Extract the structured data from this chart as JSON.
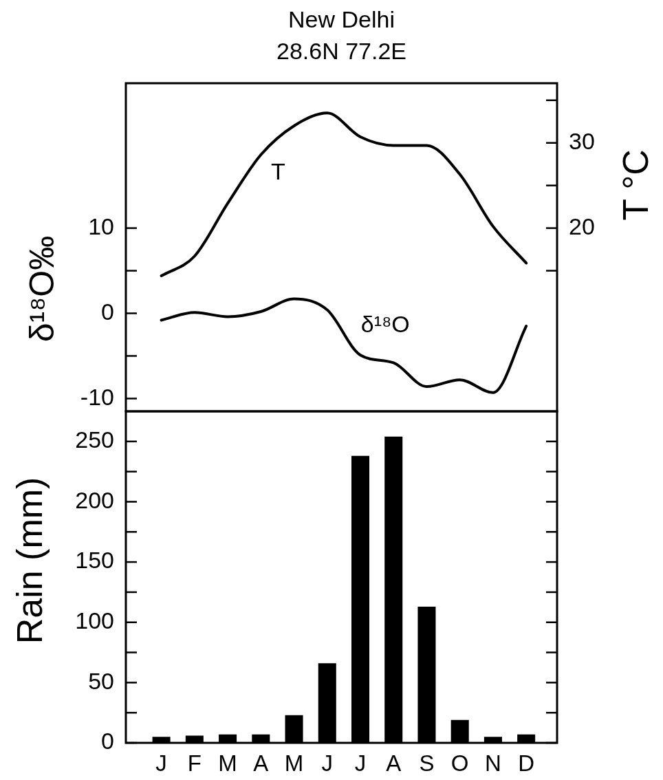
{
  "chart_data": [
    {
      "type": "line",
      "title": "New Delhi",
      "subtitle": "28.6N 77.2E",
      "ylabel": "δ¹⁸O‰",
      "y2label": "T °C",
      "categories": [
        null,
        null,
        null,
        null,
        null,
        null,
        null,
        null,
        null,
        null,
        null,
        null
      ],
      "series": [
        {
          "name": "T",
          "color": "#000000",
          "axis": "y2",
          "values": [
            14.4,
            16.7,
            22.9,
            28.6,
            32.0,
            33.5,
            30.7,
            29.7,
            29.7,
            26.3,
            20.2,
            15.9
          ]
        },
        {
          "name": "δ¹⁸O",
          "color": "#000000",
          "values": [
            -0.8,
            0.1,
            -0.4,
            0.2,
            1.7,
            0.4,
            -4.9,
            -5.8,
            -8.6,
            -7.8,
            -9.3,
            -1.5
          ]
        }
      ],
      "ylim": [
        -11.5,
        27
      ],
      "yticks": [
        -10,
        {
          "value": -5,
          "label": null
        },
        0,
        {
          "value": 5,
          "label": null
        },
        10
      ],
      "y2lim": [
        -1.5,
        37
      ],
      "y2ticks": [
        {
          "value": 15,
          "label": null
        },
        20,
        {
          "value": 25,
          "label": null
        },
        30,
        {
          "value": 35,
          "label": null
        }
      ],
      "tick_labels": "y"
    },
    {
      "type": "bar",
      "ylabel": "Rain (mm)",
      "categories": [
        "J",
        "F",
        "M",
        "A",
        "M",
        "J",
        "J",
        "A",
        "S",
        "O",
        "N",
        "D"
      ],
      "values": [
        5,
        6,
        7,
        7,
        23,
        66,
        238,
        254,
        113,
        19,
        5,
        7
      ],
      "color": "#000000",
      "ylim": [
        0,
        275
      ],
      "yticks": [
        0,
        {
          "value": 25,
          "label": null
        },
        50,
        {
          "value": 75,
          "label": null
        },
        100,
        {
          "value": 125,
          "label": null
        },
        150,
        {
          "value": 175,
          "label": null
        },
        200,
        {
          "value": 225,
          "label": null
        },
        250
      ]
    }
  ]
}
